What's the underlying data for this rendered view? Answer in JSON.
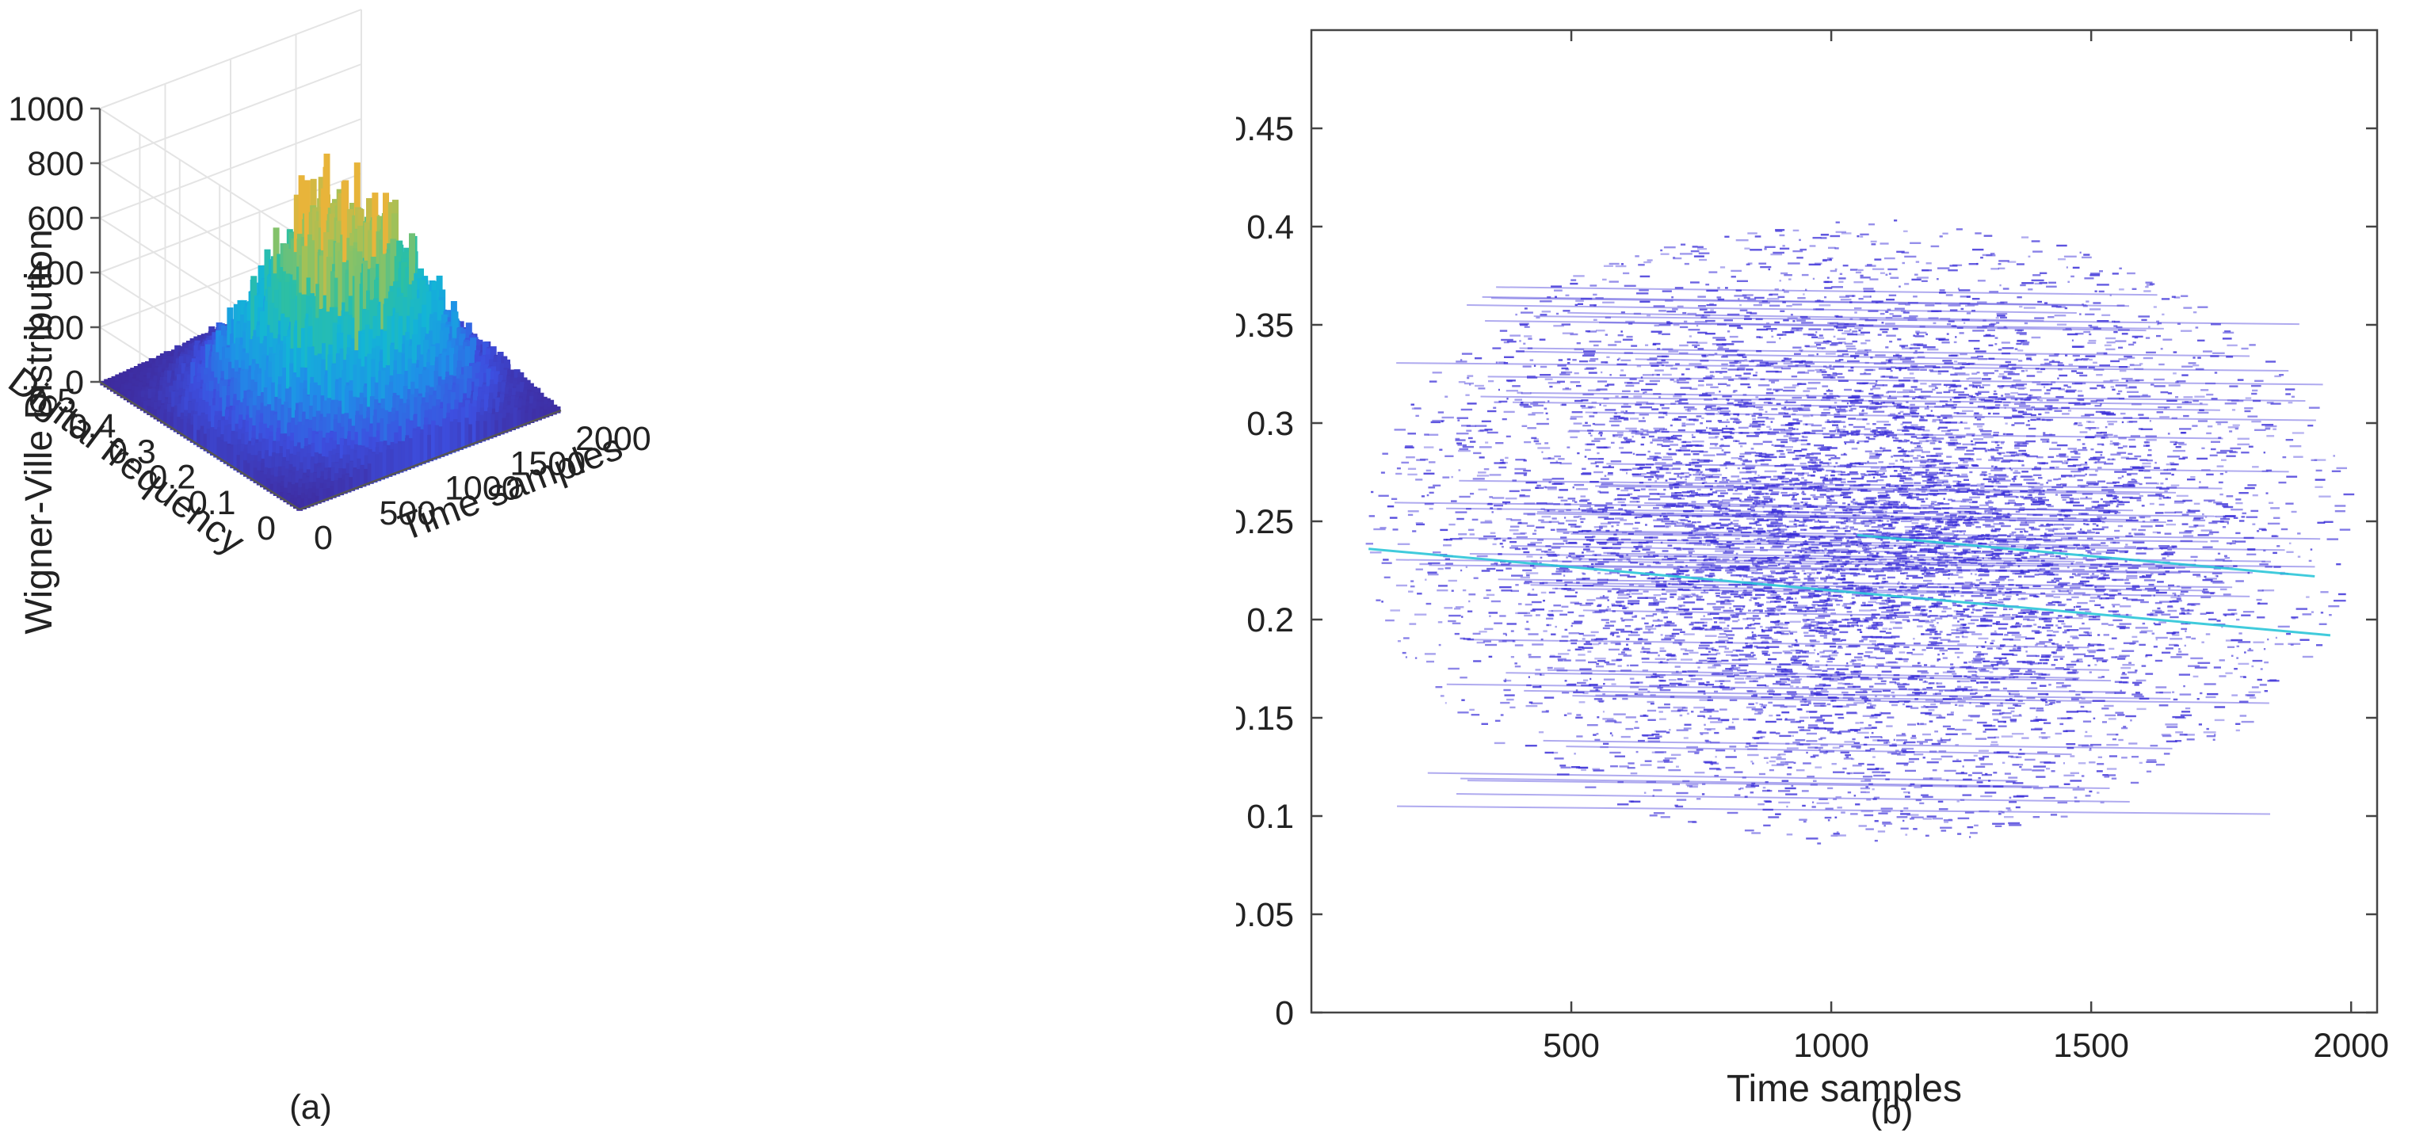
{
  "chart_data": [
    {
      "id": "a",
      "type": "surface",
      "caption": "(a)",
      "zlabel": "Wigner-Ville Distribution",
      "xlabel": "Time samples",
      "ylabel": "Digital frequency",
      "zlim": [
        0,
        1000
      ],
      "xlim": [
        0,
        2000
      ],
      "ylim": [
        0,
        0.5
      ],
      "z_ticks": [
        "0",
        "200",
        "400",
        "600",
        "800",
        "1000"
      ],
      "x_ticks": [
        "0",
        "500",
        "1000",
        "1500",
        "2000"
      ],
      "y_ticks": [
        "0",
        "0.1",
        "0.2",
        "0.3",
        "0.4",
        "0.5"
      ],
      "peak": {
        "time": 1000,
        "frequency": 0.22,
        "value": 780
      },
      "colormap": [
        "#3e2a9b",
        "#3d4fe0",
        "#1f8fe8",
        "#13b5d6",
        "#2fc0a0",
        "#9cc25a",
        "#e8b43a"
      ]
    },
    {
      "id": "b",
      "type": "scatter",
      "caption": "(b)",
      "xlabel": "Time samples",
      "ylabel": "Digital frequency",
      "xlim": [
        0,
        2050
      ],
      "ylim": [
        0,
        0.5
      ],
      "x_ticks": [
        500,
        1000,
        1500,
        2000
      ],
      "y_ticks": [
        "0",
        "0.05",
        "0.1",
        "0.15",
        "0.2",
        "0.25",
        "0.3",
        "0.35",
        "0.4",
        "0.45"
      ],
      "ridge_lines": [
        {
          "x": [
            110,
            1960
          ],
          "y": [
            0.236,
            0.192
          ]
        },
        {
          "x": [
            1050,
            1930
          ],
          "y": [
            0.243,
            0.222
          ]
        }
      ],
      "point_color": "#3a2ed8",
      "ridge_color": "#2cc6d9"
    }
  ]
}
